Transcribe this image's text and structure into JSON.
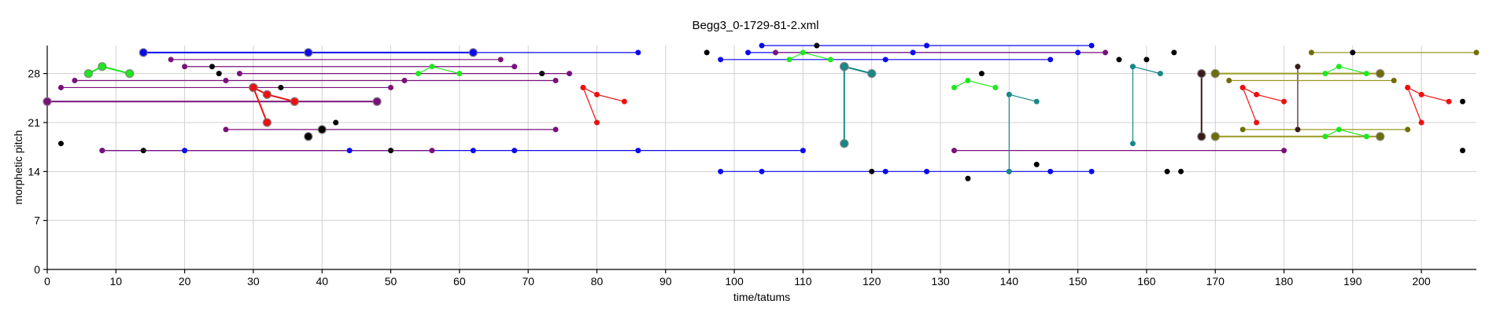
{
  "chart_data": {
    "type": "scatter",
    "title": "Begg3_0-1729-81-2.xml",
    "xlabel": "time/tatums",
    "ylabel": "morphetic pitch",
    "xlim": [
      0,
      208
    ],
    "ylim": [
      0,
      32
    ],
    "xticks": [
      0,
      10,
      20,
      30,
      40,
      50,
      60,
      70,
      80,
      90,
      100,
      110,
      120,
      130,
      140,
      150,
      160,
      170,
      180,
      190,
      200
    ],
    "yticks": [
      0,
      7,
      14,
      21,
      28
    ],
    "grid": true,
    "colors": {
      "blue": "#0a0aee",
      "purple": "#7a117a",
      "green": "#1ee81e",
      "red": "#ee1010",
      "black": "#000000",
      "teal": "#188888",
      "olive": "#6e6e00",
      "olive_line": "#9a9a20",
      "maroon": "#3a1a1a"
    },
    "series": [
      {
        "color": "blue",
        "size": 5,
        "points": [
          [
            14,
            31
          ],
          [
            38,
            31
          ],
          [
            62,
            31
          ]
        ]
      },
      {
        "color": "blue",
        "size": 3.5,
        "points": [
          [
            62,
            31
          ],
          [
            86,
            31
          ]
        ]
      },
      {
        "color": "blue",
        "size": 3.5,
        "points": [
          [
            104,
            32
          ],
          [
            128,
            32
          ],
          [
            152,
            32
          ]
        ]
      },
      {
        "color": "blue",
        "size": 3.5,
        "points": [
          [
            102,
            31
          ],
          [
            126,
            31
          ],
          [
            150,
            31
          ]
        ]
      },
      {
        "color": "blue",
        "size": 3.5,
        "points": [
          [
            98,
            30
          ],
          [
            122,
            30
          ],
          [
            146,
            30
          ]
        ]
      },
      {
        "color": "blue",
        "size": 3.5,
        "points": [
          [
            8,
            17
          ],
          [
            20,
            17
          ],
          [
            44,
            17
          ],
          [
            62,
            17
          ],
          [
            68,
            17
          ],
          [
            86,
            17
          ],
          [
            110,
            17
          ]
        ]
      },
      {
        "color": "blue",
        "size": 3.5,
        "points": [
          [
            98,
            14
          ],
          [
            104,
            14
          ],
          [
            122,
            14
          ],
          [
            128,
            14
          ],
          [
            140,
            14
          ],
          [
            146,
            14
          ],
          [
            152,
            14
          ]
        ]
      },
      {
        "color": "purple",
        "size": 3.5,
        "points": [
          [
            18,
            30
          ],
          [
            66,
            30
          ]
        ]
      },
      {
        "color": "purple",
        "size": 3.5,
        "points": [
          [
            20,
            29
          ],
          [
            68,
            29
          ]
        ]
      },
      {
        "color": "purple",
        "size": 3.5,
        "points": [
          [
            28,
            28
          ],
          [
            76,
            28
          ]
        ]
      },
      {
        "color": "purple",
        "size": 3.5,
        "points": [
          [
            4,
            27
          ],
          [
            26,
            27
          ],
          [
            52,
            27
          ],
          [
            74,
            27
          ]
        ]
      },
      {
        "color": "purple",
        "size": 3.5,
        "points": [
          [
            2,
            26
          ],
          [
            50,
            26
          ]
        ]
      },
      {
        "color": "purple",
        "size": 5,
        "points": [
          [
            0,
            24
          ],
          [
            48,
            24
          ]
        ]
      },
      {
        "color": "purple",
        "size": 3.5,
        "points": [
          [
            26,
            20
          ],
          [
            74,
            20
          ]
        ]
      },
      {
        "color": "purple",
        "size": 3.5,
        "points": [
          [
            8,
            17
          ],
          [
            56,
            17
          ]
        ]
      },
      {
        "color": "purple",
        "size": 3.5,
        "points": [
          [
            106,
            31
          ],
          [
            154,
            31
          ]
        ]
      },
      {
        "color": "purple",
        "size": 3.5,
        "points": [
          [
            132,
            17
          ],
          [
            180,
            17
          ]
        ]
      },
      {
        "color": "green",
        "size": 5,
        "points": [
          [
            6,
            28
          ],
          [
            8,
            29
          ],
          [
            12,
            28
          ]
        ]
      },
      {
        "color": "green",
        "size": 3.5,
        "points": [
          [
            54,
            28
          ],
          [
            56,
            29
          ],
          [
            60,
            28
          ]
        ]
      },
      {
        "color": "green",
        "size": 3.5,
        "points": [
          [
            108,
            30
          ],
          [
            110,
            31
          ],
          [
            114,
            30
          ]
        ]
      },
      {
        "color": "green",
        "size": 3.5,
        "points": [
          [
            132,
            26
          ],
          [
            134,
            27
          ],
          [
            138,
            26
          ]
        ]
      },
      {
        "color": "green",
        "size": 3.5,
        "points": [
          [
            186,
            28
          ],
          [
            188,
            29
          ],
          [
            192,
            28
          ]
        ]
      },
      {
        "color": "green",
        "size": 3.5,
        "points": [
          [
            186,
            19
          ],
          [
            188,
            20
          ],
          [
            192,
            19
          ]
        ]
      },
      {
        "color": "red",
        "size": 5,
        "points": [
          [
            30,
            26
          ],
          [
            32,
            25
          ],
          [
            36,
            24
          ]
        ]
      },
      {
        "color": "red",
        "size": 5,
        "points": [
          [
            30,
            26
          ],
          [
            32,
            21
          ]
        ]
      },
      {
        "color": "red",
        "size": 3.5,
        "points": [
          [
            78,
            26
          ],
          [
            80,
            25
          ],
          [
            84,
            24
          ]
        ]
      },
      {
        "color": "red",
        "size": 3.5,
        "points": [
          [
            78,
            26
          ],
          [
            80,
            21
          ]
        ]
      },
      {
        "color": "red",
        "size": 3.5,
        "points": [
          [
            174,
            26
          ],
          [
            176,
            25
          ],
          [
            180,
            24
          ]
        ]
      },
      {
        "color": "red",
        "size": 3.5,
        "points": [
          [
            174,
            26
          ],
          [
            176,
            21
          ]
        ]
      },
      {
        "color": "red",
        "size": 3.5,
        "points": [
          [
            198,
            26
          ],
          [
            200,
            25
          ],
          [
            204,
            24
          ]
        ]
      },
      {
        "color": "red",
        "size": 3.5,
        "points": [
          [
            198,
            26
          ],
          [
            200,
            21
          ]
        ]
      },
      {
        "color": "teal",
        "size": 5,
        "points": [
          [
            116,
            29
          ],
          [
            120,
            28
          ]
        ]
      },
      {
        "color": "teal",
        "size": 5,
        "points": [
          [
            116,
            29
          ],
          [
            116,
            18
          ]
        ]
      },
      {
        "color": "teal",
        "size": 3.5,
        "points": [
          [
            158,
            29
          ],
          [
            162,
            28
          ]
        ]
      },
      {
        "color": "teal",
        "size": 3.5,
        "points": [
          [
            158,
            29
          ],
          [
            158,
            18
          ]
        ]
      },
      {
        "color": "teal",
        "size": 3.5,
        "points": [
          [
            140,
            25
          ],
          [
            144,
            24
          ]
        ]
      },
      {
        "color": "teal",
        "size": 3.5,
        "points": [
          [
            140,
            25
          ],
          [
            140,
            14
          ]
        ]
      },
      {
        "color": "maroon",
        "size": 5,
        "points": [
          [
            168,
            28
          ],
          [
            168,
            19
          ]
        ]
      },
      {
        "color": "maroon",
        "size": 3.5,
        "points": [
          [
            182,
            29
          ],
          [
            182,
            20
          ]
        ]
      },
      {
        "color": "olive",
        "size": 5,
        "points": [
          [
            170,
            28
          ],
          [
            194,
            28
          ]
        ]
      },
      {
        "color": "olive",
        "size": 5,
        "points": [
          [
            170,
            19
          ],
          [
            194,
            19
          ]
        ]
      },
      {
        "color": "olive",
        "size": 3.5,
        "points": [
          [
            172,
            27
          ],
          [
            196,
            27
          ]
        ]
      },
      {
        "color": "olive",
        "size": 3.5,
        "points": [
          [
            184,
            31
          ],
          [
            208,
            31
          ]
        ]
      },
      {
        "color": "olive",
        "size": 3.5,
        "points": [
          [
            174,
            20
          ],
          [
            198,
            20
          ]
        ]
      },
      {
        "color": "black",
        "size": 5,
        "points": [
          [
            38,
            19
          ],
          [
            40,
            20
          ]
        ]
      },
      {
        "color": "black",
        "size": 3.5,
        "points": [
          [
            2,
            18
          ],
          [
            14,
            17
          ],
          [
            24,
            29
          ],
          [
            25,
            28
          ],
          [
            34,
            26
          ],
          [
            42,
            21
          ],
          [
            50,
            17
          ],
          [
            72,
            28
          ],
          [
            96,
            31
          ],
          [
            112,
            32
          ],
          [
            120,
            14
          ],
          [
            134,
            13
          ],
          [
            136,
            28
          ],
          [
            144,
            15
          ],
          [
            156,
            30
          ],
          [
            160,
            30
          ],
          [
            163,
            14
          ],
          [
            164,
            31
          ],
          [
            165,
            14
          ],
          [
            190,
            31
          ],
          [
            206,
            24
          ],
          [
            206,
            17
          ]
        ]
      }
    ]
  }
}
